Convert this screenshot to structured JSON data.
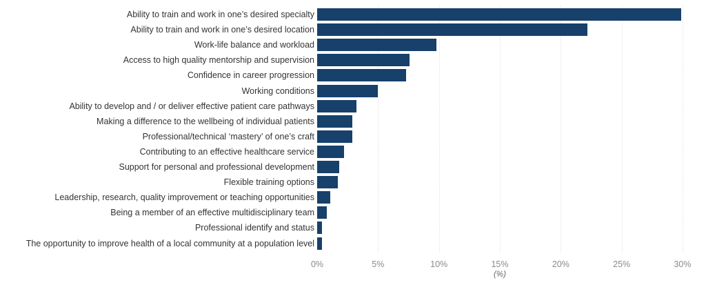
{
  "chart_data": {
    "type": "bar",
    "orientation": "horizontal",
    "title": "",
    "xlabel": "(%)",
    "ylabel": "",
    "xlim": [
      0,
      30
    ],
    "grid": true,
    "bar_color": "#17406b",
    "x_ticks": [
      "0%",
      "5%",
      "10%",
      "15%",
      "20%",
      "25%",
      "30%"
    ],
    "categories": [
      "Ability to train and work in one’s desired specialty",
      "Ability to train and work in one’s desired location",
      "Work-life balance and workload",
      "Access to high quality mentorship and supervision",
      "Confidence in career progression",
      "Working conditions",
      "Ability to develop and / or deliver effective patient care pathways",
      "Making a difference to the wellbeing of individual patients",
      "Professional/technical ‘mastery’ of one’s craft",
      "Contributing to an effective healthcare service",
      "Support for personal and professional development",
      "Flexible training options",
      "Leadership, research, quality improvement or teaching opportunities",
      "Being a member of an effective multidisciplinary team",
      "Professional identify and status",
      "The opportunity to improve health of a local community at a population level"
    ],
    "values": [
      29.9,
      22.2,
      9.8,
      7.6,
      7.3,
      5.0,
      3.2,
      2.9,
      2.9,
      2.2,
      1.8,
      1.7,
      1.1,
      0.8,
      0.4,
      0.4
    ]
  }
}
